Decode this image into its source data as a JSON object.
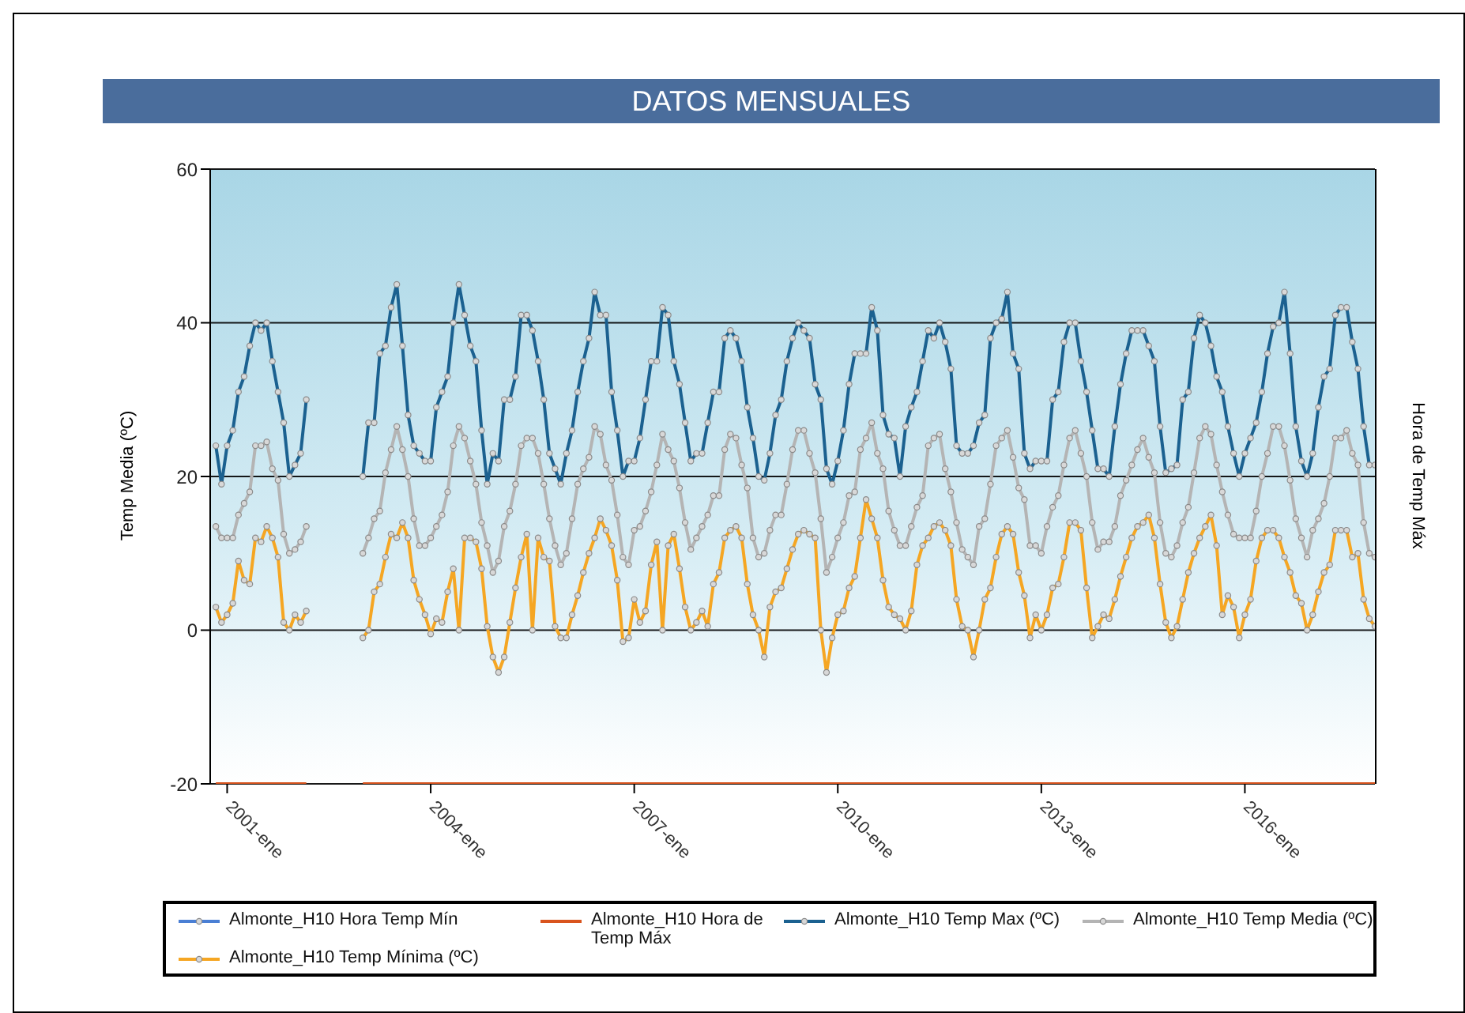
{
  "chart_data": {
    "type": "line",
    "title": "DATOS MENSUALES",
    "ylabel": "Temp Media (ºC)",
    "y2label": "Hora de Temp Máx",
    "x": [
      "2000-11",
      "2000-12",
      "2001-01",
      "2001-02",
      "2001-03",
      "2001-04",
      "2001-05",
      "2001-06",
      "2001-07",
      "2001-08",
      "2001-09",
      "2001-10",
      "2001-11",
      "2001-12",
      "2002-01",
      "2002-02",
      "2002-03",
      "2002-04",
      "2002-05",
      "2002-06",
      "2002-07",
      "2002-08",
      "2002-09",
      "2002-10",
      "2002-11",
      "2002-12",
      "2003-01",
      "2003-02",
      "2003-03",
      "2003-04",
      "2003-05",
      "2003-06",
      "2003-07",
      "2003-08",
      "2003-09",
      "2003-10",
      "2003-11",
      "2003-12",
      "2004-01",
      "2004-02",
      "2004-03",
      "2004-04",
      "2004-05",
      "2004-06",
      "2004-07",
      "2004-08",
      "2004-09",
      "2004-10",
      "2004-11",
      "2004-12",
      "2005-01",
      "2005-02",
      "2005-03",
      "2005-04",
      "2005-05",
      "2005-06",
      "2005-07",
      "2005-08",
      "2005-09",
      "2005-10",
      "2005-11",
      "2005-12",
      "2006-01",
      "2006-02",
      "2006-03",
      "2006-04",
      "2006-05",
      "2006-06",
      "2006-07",
      "2006-08",
      "2006-09",
      "2006-10",
      "2006-11",
      "2006-12",
      "2007-01",
      "2007-02",
      "2007-03",
      "2007-04",
      "2007-05",
      "2007-06",
      "2007-07",
      "2007-08",
      "2007-09",
      "2007-10",
      "2007-11",
      "2007-12",
      "2008-01",
      "2008-02",
      "2008-03",
      "2008-04",
      "2008-05",
      "2008-06",
      "2008-07",
      "2008-08",
      "2008-09",
      "2008-10",
      "2008-11",
      "2008-12",
      "2009-01",
      "2009-02",
      "2009-03",
      "2009-04",
      "2009-05",
      "2009-06",
      "2009-07",
      "2009-08",
      "2009-09",
      "2009-10",
      "2009-11",
      "2009-12",
      "2010-01",
      "2010-02",
      "2010-03",
      "2010-04",
      "2010-05",
      "2010-06",
      "2010-07",
      "2010-08",
      "2010-09",
      "2010-10",
      "2010-11",
      "2010-12",
      "2011-01",
      "2011-02",
      "2011-03",
      "2011-04",
      "2011-05",
      "2011-06",
      "2011-07",
      "2011-08",
      "2011-09",
      "2011-10",
      "2011-11",
      "2011-12",
      "2012-01",
      "2012-02",
      "2012-03",
      "2012-04",
      "2012-05",
      "2012-06",
      "2012-07",
      "2012-08",
      "2012-09",
      "2012-10",
      "2012-11",
      "2012-12",
      "2013-01",
      "2013-02",
      "2013-03",
      "2013-04",
      "2013-05",
      "2013-06",
      "2013-07",
      "2013-08",
      "2013-09",
      "2013-10",
      "2013-11",
      "2013-12",
      "2014-01",
      "2014-02",
      "2014-03",
      "2014-04",
      "2014-05",
      "2014-06",
      "2014-07",
      "2014-08",
      "2014-09",
      "2014-10",
      "2014-11",
      "2014-12",
      "2015-01",
      "2015-02",
      "2015-03",
      "2015-04",
      "2015-05",
      "2015-06",
      "2015-07",
      "2015-08",
      "2015-09",
      "2015-10",
      "2015-11",
      "2015-12",
      "2016-01",
      "2016-02",
      "2016-03",
      "2016-04",
      "2016-05",
      "2016-06",
      "2016-07",
      "2016-08",
      "2016-09",
      "2016-10",
      "2016-11",
      "2016-12",
      "2017-01",
      "2017-02",
      "2017-03",
      "2017-04",
      "2017-05",
      "2017-06",
      "2017-07",
      "2017-08",
      "2017-09",
      "2017-10",
      "2017-11",
      "2017-12"
    ],
    "series": [
      {
        "name": "Almonte_H10 Hora Temp Mín",
        "color": "#4a7fd4",
        "values": [
          null,
          null,
          null,
          null,
          null,
          null,
          null,
          null,
          null,
          null,
          null,
          null,
          null,
          null,
          null,
          null,
          null,
          null,
          null,
          null,
          null,
          null,
          null,
          null,
          null,
          null,
          null,
          null,
          null,
          null,
          null,
          null,
          null,
          null,
          null,
          null,
          null,
          null,
          null,
          null,
          null,
          null,
          null,
          null,
          null,
          null,
          null,
          null,
          null,
          null,
          null,
          null,
          null,
          null,
          null,
          null,
          null,
          null,
          null,
          null,
          null,
          null,
          null,
          null,
          null,
          null,
          null,
          null,
          null,
          null,
          null,
          null,
          null,
          null,
          null,
          null,
          null,
          null,
          null,
          null,
          null,
          null,
          null,
          null,
          null,
          null,
          null,
          null,
          null,
          null,
          null,
          null,
          null,
          null,
          null,
          null,
          null,
          null,
          null,
          null,
          null,
          null,
          null,
          null,
          null,
          null,
          null,
          null,
          null,
          null,
          null,
          null,
          null,
          null,
          null,
          null,
          null,
          null,
          null,
          null,
          null,
          null,
          null,
          null,
          null,
          null,
          null,
          null,
          null,
          null,
          null,
          null,
          null,
          null,
          null,
          null,
          null,
          null,
          null,
          null,
          null,
          null,
          null,
          null,
          null,
          null,
          null,
          null,
          null,
          null,
          null,
          null,
          null,
          null,
          null,
          null,
          null,
          null,
          null,
          null,
          null,
          null,
          null,
          null,
          null,
          null,
          null,
          null,
          null,
          null,
          null,
          null,
          null,
          null,
          null,
          null,
          null,
          null,
          null,
          null,
          null,
          null,
          null,
          null,
          null,
          null,
          null,
          null,
          null,
          null,
          null,
          null,
          null,
          null,
          null,
          null,
          null,
          null,
          null,
          null,
          null,
          null,
          null,
          null,
          null,
          null
        ]
      },
      {
        "name": "Almonte_H10 Hora de Temp Máx",
        "color": "#d9541e",
        "marker": "none",
        "values": [
          -20,
          -20,
          -20,
          -20,
          -20,
          -20,
          -20,
          -20,
          -20,
          -20,
          -20,
          -20,
          -20,
          -20,
          -20,
          -20,
          -20,
          null,
          null,
          null,
          null,
          null,
          null,
          null,
          null,
          null,
          -20,
          -20,
          -20,
          -20,
          -20,
          -20,
          -20,
          -20,
          -20,
          -20,
          -20,
          -20,
          -20,
          -20,
          -20,
          -20,
          -20,
          -20,
          -20,
          -20,
          -20,
          -20,
          -20,
          -20,
          -20,
          -20,
          -20,
          -20,
          -20,
          -20,
          -20,
          -20,
          -20,
          -20,
          -20,
          -20,
          -20,
          -20,
          -20,
          -20,
          -20,
          -20,
          -20,
          -20,
          -20,
          -20,
          -20,
          -20,
          -20,
          -20,
          -20,
          -20,
          -20,
          -20,
          -20,
          -20,
          -20,
          -20,
          -20,
          -20,
          -20,
          -20,
          -20,
          -20,
          -20,
          -20,
          -20,
          -20,
          -20,
          -20,
          -20,
          -20,
          -20,
          -20,
          -20,
          -20,
          -20,
          -20,
          -20,
          -20,
          -20,
          -20,
          -20,
          -20,
          -20,
          -20,
          -20,
          -20,
          -20,
          -20,
          -20,
          -20,
          -20,
          -20,
          -20,
          -20,
          -20,
          -20,
          -20,
          -20,
          -20,
          -20,
          -20,
          -20,
          -20,
          -20,
          -20,
          -20,
          -20,
          -20,
          -20,
          -20,
          -20,
          -20,
          -20,
          -20,
          -20,
          -20,
          -20,
          -20,
          -20,
          -20,
          -20,
          -20,
          -20,
          -20,
          -20,
          -20,
          -20,
          -20,
          -20,
          -20,
          -20,
          -20,
          -20,
          -20,
          -20,
          -20,
          -20,
          -20,
          -20,
          -20,
          -20,
          -20,
          -20,
          -20,
          -20,
          -20,
          -20,
          -20,
          -20,
          -20,
          -20,
          -20,
          -20,
          -20,
          -20,
          -20,
          -20,
          -20,
          -20,
          -20,
          -20,
          -20,
          -20,
          -20,
          -20,
          -20,
          -20,
          -20,
          -20,
          -20,
          -20,
          -20,
          -20,
          -20,
          -20,
          -20,
          -20,
          -20
        ]
      },
      {
        "name": "Almonte_H10 Temp Max (ºC)",
        "color": "#1b6190",
        "values": [
          24,
          19,
          24,
          26,
          31,
          33,
          37,
          40,
          39,
          40,
          35,
          31,
          27,
          20,
          21.5,
          23,
          30,
          null,
          null,
          null,
          null,
          null,
          null,
          null,
          null,
          null,
          20,
          27,
          27,
          36,
          37,
          42,
          45,
          37,
          28,
          24,
          23,
          22,
          22,
          29,
          31,
          33,
          40,
          45,
          41,
          37,
          35,
          26,
          19,
          23,
          22,
          30,
          30,
          33,
          41,
          41,
          39,
          35,
          30,
          23,
          21,
          19,
          23,
          26,
          31,
          35,
          38,
          44,
          41,
          41,
          31,
          26,
          20,
          22,
          22,
          25,
          30,
          35,
          35,
          42,
          41,
          35,
          32,
          27,
          22,
          23,
          23,
          27,
          31,
          31,
          38,
          39,
          38,
          35,
          29,
          25,
          20,
          19.5,
          23,
          28,
          30,
          35,
          38,
          40,
          39,
          38,
          32,
          30,
          21,
          19,
          22,
          26,
          32,
          36,
          36,
          36,
          42,
          39,
          28,
          25.5,
          25,
          20,
          26.5,
          29,
          31,
          35,
          39,
          38,
          40,
          37.5,
          34,
          24,
          23,
          23,
          24,
          27,
          28,
          38,
          40,
          40.5,
          44,
          36,
          34,
          23,
          21,
          22,
          22,
          22,
          30,
          31,
          37.5,
          40,
          40,
          35,
          31,
          26,
          21,
          21,
          20,
          26.5,
          32,
          36,
          39,
          39,
          39,
          37,
          35,
          26.5,
          20.5,
          21,
          21.5,
          30,
          31,
          38,
          41,
          40,
          37,
          33,
          31,
          26.5,
          23,
          20,
          23,
          25,
          27,
          31,
          36,
          39.5,
          40,
          44,
          36,
          26.5,
          22,
          20,
          23,
          29,
          33,
          34,
          41,
          42,
          42,
          37.5,
          34,
          26.5,
          21.5,
          21.5
        ]
      },
      {
        "name": "Almonte_H10 Temp Media (ºC)",
        "color": "#b4b4b4",
        "values": [
          13.5,
          12,
          12,
          12,
          15,
          16.5,
          18,
          24,
          24,
          24.5,
          21,
          19.5,
          12.5,
          10,
          10.5,
          11.5,
          13.5,
          null,
          null,
          null,
          null,
          null,
          null,
          null,
          null,
          null,
          10,
          12,
          14.5,
          15.5,
          20.5,
          23.5,
          26.5,
          23.5,
          20,
          14.5,
          11,
          11,
          12,
          13.5,
          15,
          18,
          24,
          26.5,
          25,
          22,
          19,
          14,
          11,
          7.5,
          9,
          13.5,
          15.5,
          19,
          24,
          25,
          25,
          23,
          19,
          14.5,
          11,
          8.5,
          10,
          14.5,
          19,
          21,
          22.5,
          26.5,
          25.5,
          21.5,
          19.5,
          15,
          9.5,
          8.5,
          13,
          13.5,
          15.5,
          18,
          21.5,
          25.5,
          23.5,
          22,
          18.5,
          14,
          10.5,
          12,
          13.5,
          15,
          17.5,
          17.5,
          23.5,
          25.5,
          25,
          21.5,
          18.5,
          12,
          9.5,
          10,
          13,
          15,
          15,
          19,
          23.5,
          26,
          26,
          23,
          20.5,
          14.5,
          7.5,
          9.5,
          12,
          14,
          17.5,
          18,
          23.5,
          25,
          27,
          23,
          21,
          15.5,
          13,
          11,
          11,
          13.5,
          16,
          17.5,
          24,
          25,
          25.5,
          21,
          18,
          14,
          10.5,
          9.5,
          8.5,
          13.5,
          14.5,
          19,
          24,
          25,
          26,
          22.5,
          18.5,
          17,
          11,
          11,
          10,
          13.5,
          16,
          17.5,
          21.5,
          25,
          26,
          23,
          20,
          14,
          10.5,
          11.5,
          11.5,
          13.5,
          17.5,
          19.5,
          21.5,
          23.5,
          25,
          22.5,
          20.5,
          14,
          10,
          9.5,
          11,
          14,
          16,
          20.5,
          25,
          26.5,
          25.5,
          21.5,
          18,
          15,
          12.5,
          12,
          12,
          12,
          15.5,
          20,
          23,
          26.5,
          26.5,
          24,
          19.5,
          14.5,
          12,
          9.5,
          13,
          14.5,
          16.5,
          20,
          25,
          25,
          26,
          23,
          21.5,
          14,
          10,
          9.5
        ]
      },
      {
        "name": "Almonte_H10 Temp Mínima (ºC)",
        "color": "#f5a623",
        "values": [
          3,
          1,
          2,
          3.5,
          9,
          6.5,
          6,
          12,
          11.5,
          13.5,
          12,
          9.5,
          1,
          0,
          2,
          1,
          2.5,
          null,
          null,
          null,
          null,
          null,
          null,
          null,
          null,
          null,
          -1,
          0,
          5,
          6,
          9.5,
          12.5,
          12,
          14,
          12,
          6.5,
          4,
          2,
          -0.5,
          1.5,
          1,
          5,
          8,
          0,
          12,
          12,
          11.5,
          8,
          0.5,
          -3.5,
          -5.5,
          -3.5,
          1,
          5.5,
          9.5,
          12.5,
          0,
          12,
          9.5,
          9,
          0.5,
          -1,
          -1,
          2,
          4.5,
          7.5,
          10,
          12,
          14.5,
          13,
          11,
          6.5,
          -1.5,
          -1,
          4,
          1,
          2.5,
          8.5,
          11.5,
          0,
          11,
          12.5,
          8,
          3,
          0,
          1,
          2.5,
          0.5,
          6,
          7.5,
          12,
          13,
          13.5,
          12,
          6,
          2,
          0,
          -3.5,
          3,
          5,
          5.5,
          8,
          10.5,
          12.5,
          13,
          12.5,
          12,
          0,
          -5.5,
          -1,
          2,
          2.5,
          5.5,
          7,
          12,
          17,
          14.5,
          12,
          6.5,
          3,
          2,
          1.5,
          0,
          2.5,
          8.5,
          11,
          12,
          13.5,
          14,
          13,
          11,
          4,
          0.5,
          0,
          -3.5,
          0,
          4,
          5.5,
          9.5,
          12.5,
          13.5,
          12.5,
          7.5,
          4.5,
          -1,
          2,
          0,
          2,
          5.5,
          6,
          9.5,
          14,
          14,
          13,
          5.5,
          -1,
          0.5,
          2,
          1.5,
          4,
          7,
          9.5,
          12,
          13.5,
          14,
          15,
          12,
          6,
          1,
          -1,
          0.5,
          4,
          7.5,
          10,
          12,
          13.5,
          15,
          11,
          2,
          4.5,
          3,
          -1,
          2,
          4,
          9,
          12,
          13,
          13,
          12,
          9.5,
          7.5,
          4.5,
          3.5,
          0,
          2,
          5,
          7.5,
          8.5,
          13,
          13,
          13,
          9.5,
          10,
          4,
          1.5,
          0.5
        ]
      }
    ],
    "xlim": [
      "2000-10",
      "2017-12"
    ],
    "xticks": [
      {
        "value": "2001-01",
        "label": "2001-ene"
      },
      {
        "value": "2004-01",
        "label": "2004-ene"
      },
      {
        "value": "2007-01",
        "label": "2007-ene"
      },
      {
        "value": "2010-01",
        "label": "2010-ene"
      },
      {
        "value": "2013-01",
        "label": "2013-ene"
      },
      {
        "value": "2016-01",
        "label": "2016-ene"
      }
    ],
    "ylim": [
      -20,
      60
    ],
    "yticks": [
      -20,
      0,
      20,
      40,
      60
    ],
    "grid": "y",
    "legend": "bottom",
    "marker": "circle",
    "line_style": "solid"
  }
}
